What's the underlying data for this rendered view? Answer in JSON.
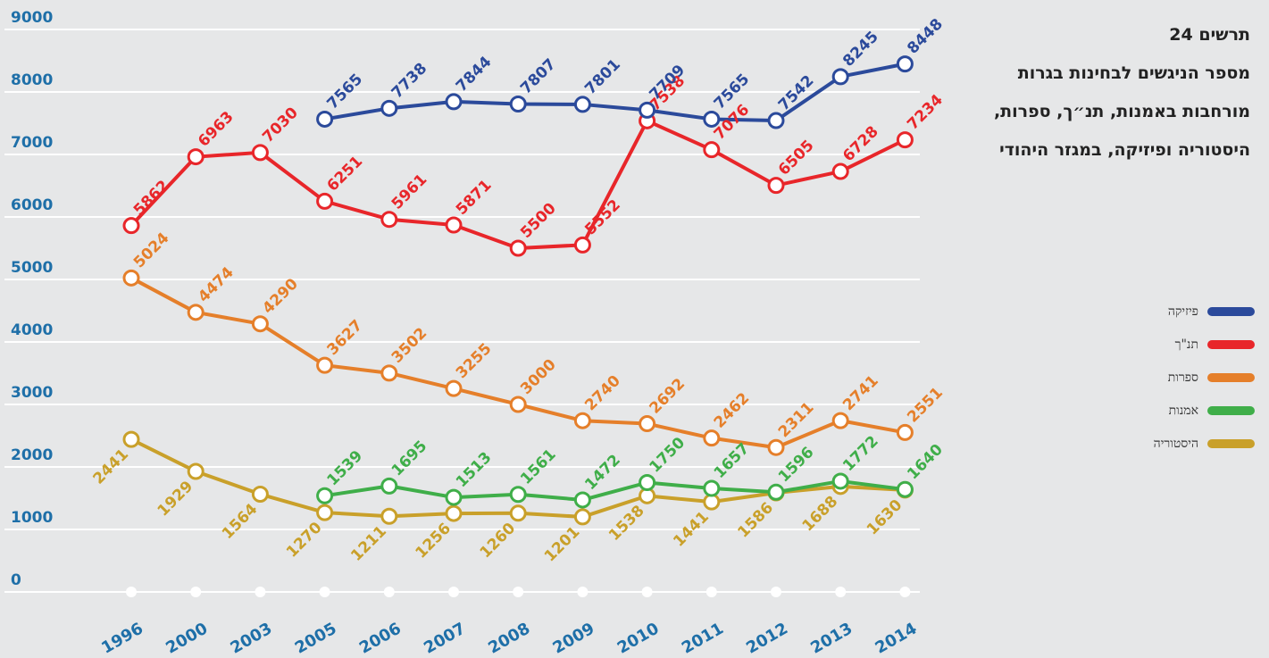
{
  "chart_data": {
    "type": "line",
    "title": "תרשים 24",
    "subtitle": "מספר הניגשים לבחינות בגרות מורחבות באמנות, תנ״ך, ספרות, היסטוריה ופיזיקה, במגזר היהודי",
    "categories": [
      "1996",
      "2000",
      "2003",
      "2005",
      "2006",
      "2007",
      "2008",
      "2009",
      "2010",
      "2011",
      "2012",
      "2013",
      "2014"
    ],
    "series": [
      {
        "name": "פיזיקה",
        "color": "#2b4a9b",
        "values": [
          null,
          null,
          null,
          7565,
          7738,
          7844,
          7807,
          7801,
          7709,
          7565,
          7542,
          8245,
          8448
        ]
      },
      {
        "name": "תנ\"ך",
        "color": "#e8262a",
        "values": [
          5862,
          6963,
          7030,
          6251,
          5961,
          5871,
          5500,
          5552,
          7538,
          7076,
          6505,
          6728,
          7234
        ]
      },
      {
        "name": "ספרות",
        "color": "#e57f2a",
        "values": [
          5024,
          4474,
          4290,
          3627,
          3502,
          3255,
          3000,
          2740,
          2692,
          2462,
          2311,
          2741,
          2551
        ]
      },
      {
        "name": "אמנות",
        "color": "#3fae49",
        "values": [
          null,
          null,
          null,
          1539,
          1695,
          1513,
          1561,
          1472,
          1750,
          1657,
          1596,
          1772,
          1640
        ]
      },
      {
        "name": "היסטוריה",
        "color": "#c9a02a",
        "values": [
          2441,
          1929,
          1564,
          1270,
          1211,
          1256,
          1260,
          1201,
          1538,
          1441,
          1586,
          1688,
          1630
        ]
      }
    ],
    "ylim": [
      0,
      9000
    ],
    "yticks": [
      0,
      1000,
      2000,
      3000,
      4000,
      5000,
      6000,
      7000,
      8000,
      9000
    ],
    "grid": true
  }
}
